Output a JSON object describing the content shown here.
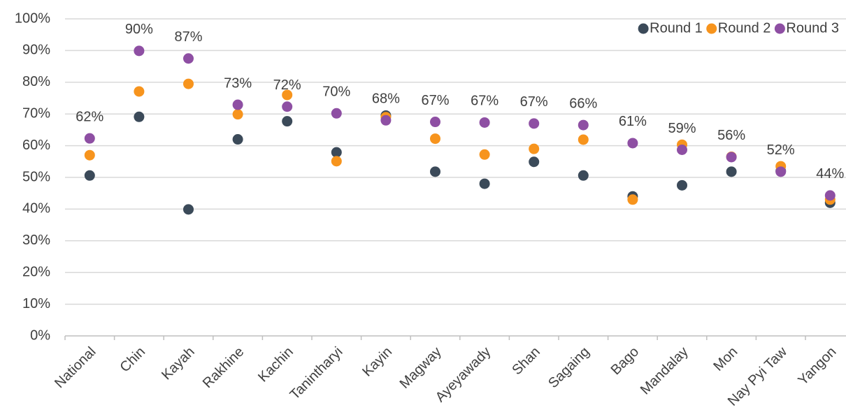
{
  "chart_data": {
    "type": "dot",
    "categories": [
      "National",
      "Chin",
      "Kayah",
      "Rakhine",
      "Kachin",
      "Tanintharyi",
      "Kayin",
      "Magway",
      "Ayeyawady",
      "Shan",
      "Sagaing",
      "Bago",
      "Mandalay",
      "Mon",
      "Nay Pyi Taw",
      "Yangon"
    ],
    "series": [
      {
        "name": "Round 1",
        "color": "#3b4a59",
        "values": [
          50.6,
          69.1,
          39.9,
          62.0,
          67.7,
          57.9,
          69.5,
          51.8,
          48.0,
          54.9,
          50.6,
          44.0,
          47.5,
          51.8,
          52.0,
          42.0
        ]
      },
      {
        "name": "Round 2",
        "color": "#f7941d",
        "values": [
          57.0,
          77.1,
          79.5,
          69.9,
          76.0,
          55.1,
          69.0,
          62.2,
          57.2,
          59.0,
          61.9,
          43.0,
          60.3,
          56.5,
          53.5,
          43.0
        ]
      },
      {
        "name": "Round 3",
        "color": "#8e4fa3",
        "values": [
          62.3,
          89.9,
          87.5,
          72.9,
          72.3,
          70.2,
          68.0,
          67.5,
          67.3,
          67.0,
          66.5,
          60.8,
          58.7,
          56.4,
          51.8,
          44.3
        ],
        "value_labels": [
          "62%",
          "90%",
          "87%",
          "73%",
          "72%",
          "70%",
          "68%",
          "67%",
          "67%",
          "67%",
          "66%",
          "61%",
          "59%",
          "56%",
          "52%",
          "44%"
        ]
      }
    ],
    "ylim": [
      0,
      100
    ],
    "yticks": [
      {
        "value": 0,
        "label": "0%"
      },
      {
        "value": 10,
        "label": "10%"
      },
      {
        "value": 20,
        "label": "20%"
      },
      {
        "value": 30,
        "label": "30%"
      },
      {
        "value": 40,
        "label": "40%"
      },
      {
        "value": 50,
        "label": "50%"
      },
      {
        "value": 60,
        "label": "60%"
      },
      {
        "value": 70,
        "label": "70%"
      },
      {
        "value": 80,
        "label": "80%"
      },
      {
        "value": 90,
        "label": "90%"
      },
      {
        "value": 100,
        "label": "100%"
      }
    ],
    "grid": true,
    "legend": "top-right"
  }
}
